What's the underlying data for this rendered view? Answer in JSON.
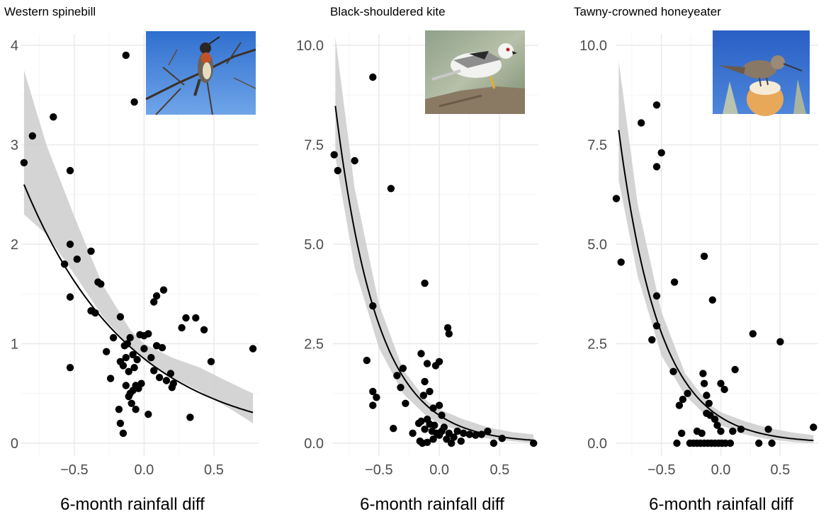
{
  "colors": {
    "background": "#ffffff",
    "grid_major": "#ebebeb",
    "grid_minor": "#f5f5f5",
    "points": "#000000",
    "fit_line": "#000000",
    "ribbon": "#cccccc",
    "tick_text": "#4d4d4d"
  },
  "chart_data": [
    {
      "type": "scatter",
      "title": "Western spinebill",
      "xlabel": "6-month rainfall diff",
      "ylabel": "",
      "xlim": [
        -0.88,
        0.82
      ],
      "ylim": [
        -0.1,
        4.1
      ],
      "x_ticks": [
        -0.5,
        0.0,
        0.5
      ],
      "x_tick_labels": [
        "−0.5",
        "0.0",
        "0.5"
      ],
      "y_ticks": [
        0,
        1,
        2,
        3,
        4
      ],
      "y_tick_labels": [
        "0",
        "1",
        "2",
        "3",
        "4"
      ],
      "grid": true,
      "photo_icon": "western-spinebill-photo",
      "fit": {
        "model": "exponential",
        "a": 0.85,
        "b": -1.3,
        "x_range": [
          -0.86,
          0.78
        ]
      },
      "band": {
        "lower": [
          [
            -0.86,
            2.3
          ],
          [
            -0.7,
            2.1
          ],
          [
            -0.5,
            1.7
          ],
          [
            -0.3,
            1.28
          ],
          [
            -0.1,
            0.96
          ],
          [
            0.0,
            0.84
          ],
          [
            0.2,
            0.66
          ],
          [
            0.4,
            0.52
          ],
          [
            0.6,
            0.36
          ],
          [
            0.78,
            0.2
          ]
        ],
        "upper": [
          [
            -0.86,
            3.75
          ],
          [
            -0.7,
            3.0
          ],
          [
            -0.5,
            2.28
          ],
          [
            -0.3,
            1.6
          ],
          [
            -0.1,
            1.14
          ],
          [
            0.0,
            1.0
          ],
          [
            0.2,
            0.86
          ],
          [
            0.4,
            0.76
          ],
          [
            0.6,
            0.62
          ],
          [
            0.78,
            0.5
          ]
        ]
      },
      "points": [
        [
          -0.86,
          2.82
        ],
        [
          -0.8,
          3.09
        ],
        [
          -0.65,
          3.28
        ],
        [
          -0.13,
          3.9
        ],
        [
          -0.07,
          3.43
        ],
        [
          -0.53,
          2.74
        ],
        [
          -0.53,
          2.0
        ],
        [
          -0.57,
          1.8
        ],
        [
          -0.48,
          1.85
        ],
        [
          -0.38,
          1.93
        ],
        [
          -0.33,
          1.62
        ],
        [
          -0.31,
          1.6
        ],
        [
          -0.53,
          1.47
        ],
        [
          -0.38,
          1.33
        ],
        [
          -0.35,
          1.31
        ],
        [
          -0.53,
          0.76
        ],
        [
          -0.27,
          0.92
        ],
        [
          -0.22,
          1.06
        ],
        [
          -0.24,
          0.65
        ],
        [
          -0.17,
          1.27
        ],
        [
          -0.17,
          0.82
        ],
        [
          -0.14,
          0.98
        ],
        [
          -0.12,
          1.0
        ],
        [
          -0.1,
          1.06
        ],
        [
          -0.13,
          0.86
        ],
        [
          -0.15,
          0.78
        ],
        [
          -0.11,
          0.72
        ],
        [
          -0.07,
          0.76
        ],
        [
          -0.08,
          0.89
        ],
        [
          -0.05,
          0.84
        ],
        [
          -0.13,
          0.58
        ],
        [
          -0.1,
          0.5
        ],
        [
          -0.08,
          0.53
        ],
        [
          -0.06,
          0.58
        ],
        [
          -0.04,
          0.55
        ],
        [
          -0.02,
          0.6
        ],
        [
          -0.09,
          0.4
        ],
        [
          -0.06,
          0.34
        ],
        [
          -0.11,
          0.47
        ],
        [
          -0.18,
          0.34
        ],
        [
          -0.17,
          0.2
        ],
        [
          -0.15,
          0.1
        ],
        [
          -0.03,
          1.09
        ],
        [
          0.0,
          1.08
        ],
        [
          0.03,
          1.1
        ],
        [
          0.07,
          1.42
        ],
        [
          0.09,
          1.48
        ],
        [
          0.14,
          1.54
        ],
        [
          0.0,
          0.95
        ],
        [
          0.05,
          0.86
        ],
        [
          0.09,
          0.98
        ],
        [
          0.13,
          0.96
        ],
        [
          0.07,
          0.73
        ],
        [
          0.11,
          0.66
        ],
        [
          0.16,
          0.63
        ],
        [
          0.19,
          0.7
        ],
        [
          0.21,
          0.6
        ],
        [
          0.2,
          0.56
        ],
        [
          0.03,
          0.29
        ],
        [
          0.27,
          1.16
        ],
        [
          0.3,
          1.26
        ],
        [
          0.37,
          1.26
        ],
        [
          0.43,
          1.14
        ],
        [
          0.48,
          0.82
        ],
        [
          0.33,
          0.26
        ],
        [
          0.78,
          0.95
        ]
      ]
    },
    {
      "type": "scatter",
      "title": "Black-shouldered kite",
      "xlabel": "6-month rainfall diff",
      "ylabel": "",
      "xlim": [
        -0.88,
        0.82
      ],
      "ylim": [
        -0.25,
        10.25
      ],
      "x_ticks": [
        -0.5,
        0.0,
        0.5
      ],
      "x_tick_labels": [
        "−0.5",
        "0.0",
        "0.5"
      ],
      "y_ticks": [
        0,
        2.5,
        5,
        7.5,
        10
      ],
      "y_tick_labels": [
        "0.0",
        "2.5",
        "5.0",
        "7.5",
        "10.0"
      ],
      "grid": true,
      "photo_icon": "black-shouldered-kite-photo",
      "fit": {
        "model": "exponential",
        "a": 0.7,
        "b": -2.9,
        "x_range": [
          -0.86,
          0.78
        ]
      },
      "band": {
        "lower": [
          [
            -0.86,
            7.2
          ],
          [
            -0.7,
            4.4
          ],
          [
            -0.5,
            2.4
          ],
          [
            -0.3,
            1.25
          ],
          [
            -0.1,
            0.66
          ],
          [
            0.0,
            0.5
          ],
          [
            0.2,
            0.26
          ],
          [
            0.4,
            0.12
          ],
          [
            0.6,
            0.05
          ],
          [
            0.78,
            0.0
          ]
        ],
        "upper": [
          [
            -0.86,
            10.2
          ],
          [
            -0.7,
            6.4
          ],
          [
            -0.5,
            3.5
          ],
          [
            -0.3,
            1.85
          ],
          [
            -0.1,
            1.05
          ],
          [
            0.0,
            0.85
          ],
          [
            0.2,
            0.6
          ],
          [
            0.4,
            0.4
          ],
          [
            0.6,
            0.28
          ],
          [
            0.78,
            0.22
          ]
        ]
      },
      "points": [
        [
          -0.87,
          7.25
        ],
        [
          -0.84,
          6.85
        ],
        [
          -0.7,
          7.1
        ],
        [
          -0.55,
          9.2
        ],
        [
          -0.4,
          6.4
        ],
        [
          -0.55,
          3.45
        ],
        [
          -0.6,
          2.08
        ],
        [
          -0.55,
          1.3
        ],
        [
          -0.52,
          1.15
        ],
        [
          -0.55,
          0.95
        ],
        [
          -0.35,
          1.7
        ],
        [
          -0.3,
          1.88
        ],
        [
          -0.32,
          1.4
        ],
        [
          -0.28,
          1.0
        ],
        [
          -0.38,
          0.37
        ],
        [
          -0.12,
          4.02
        ],
        [
          -0.15,
          2.25
        ],
        [
          -0.12,
          1.55
        ],
        [
          -0.1,
          2.0
        ],
        [
          -0.03,
          1.95
        ],
        [
          0.0,
          2.05
        ],
        [
          0.07,
          2.9
        ],
        [
          0.08,
          2.75
        ],
        [
          -0.13,
          1.2
        ],
        [
          -0.08,
          1.3
        ],
        [
          -0.05,
          0.88
        ],
        [
          0.0,
          0.95
        ],
        [
          0.02,
          0.7
        ],
        [
          -0.22,
          0.25
        ],
        [
          -0.17,
          0.5
        ],
        [
          -0.15,
          0.55
        ],
        [
          -0.12,
          0.35
        ],
        [
          -0.1,
          0.6
        ],
        [
          -0.08,
          0.48
        ],
        [
          -0.06,
          0.3
        ],
        [
          -0.04,
          0.45
        ],
        [
          -0.02,
          0.25
        ],
        [
          0.0,
          0.2
        ],
        [
          0.02,
          0.3
        ],
        [
          0.04,
          0.4
        ],
        [
          0.06,
          0.1
        ],
        [
          0.08,
          0.25
        ],
        [
          0.1,
          0.0
        ],
        [
          0.12,
          0.15
        ],
        [
          0.15,
          0.3
        ],
        [
          0.18,
          0.05
        ],
        [
          0.2,
          0.25
        ],
        [
          0.25,
          0.22
        ],
        [
          0.3,
          0.2
        ],
        [
          0.35,
          0.22
        ],
        [
          0.4,
          0.3
        ],
        [
          0.45,
          0.0
        ],
        [
          0.52,
          0.12
        ],
        [
          -0.16,
          0.05
        ],
        [
          -0.14,
          0.0
        ],
        [
          -0.1,
          0.02
        ],
        [
          -0.05,
          0.1
        ],
        [
          0.78,
          0.0
        ]
      ]
    },
    {
      "type": "scatter",
      "title": "Tawny-crowned honeyeater",
      "xlabel": "6-month rainfall diff",
      "ylabel": "",
      "xlim": [
        -0.88,
        0.82
      ],
      "ylim": [
        -0.25,
        10.25
      ],
      "x_ticks": [
        -0.5,
        0.0,
        0.5
      ],
      "x_tick_labels": [
        "−0.5",
        "0.0",
        "0.5"
      ],
      "y_ticks": [
        0,
        2.5,
        5,
        7.5,
        10
      ],
      "y_tick_labels": [
        "0.0",
        "2.5",
        "5.0",
        "7.5",
        "10.0"
      ],
      "grid": true,
      "photo_icon": "tawny-crowned-honeyeater-photo",
      "fit": {
        "model": "exponential",
        "a": 0.65,
        "b": -2.9,
        "x_range": [
          -0.86,
          0.78
        ]
      },
      "band": {
        "lower": [
          [
            -0.86,
            6.6
          ],
          [
            -0.7,
            4.2
          ],
          [
            -0.5,
            2.2
          ],
          [
            -0.3,
            1.2
          ],
          [
            -0.1,
            0.62
          ],
          [
            0.0,
            0.45
          ],
          [
            0.2,
            0.22
          ],
          [
            0.4,
            0.1
          ],
          [
            0.6,
            0.03
          ],
          [
            0.78,
            0.0
          ]
        ],
        "upper": [
          [
            -0.86,
            9.6
          ],
          [
            -0.7,
            6.0
          ],
          [
            -0.5,
            3.3
          ],
          [
            -0.3,
            1.75
          ],
          [
            -0.1,
            0.98
          ],
          [
            0.0,
            0.78
          ],
          [
            0.2,
            0.55
          ],
          [
            0.4,
            0.38
          ],
          [
            0.6,
            0.27
          ],
          [
            0.78,
            0.2
          ]
        ]
      },
      "points": [
        [
          -0.88,
          6.15
        ],
        [
          -0.84,
          4.55
        ],
        [
          -0.67,
          8.05
        ],
        [
          -0.54,
          8.5
        ],
        [
          -0.5,
          7.3
        ],
        [
          -0.54,
          6.95
        ],
        [
          -0.54,
          3.7
        ],
        [
          -0.54,
          2.95
        ],
        [
          -0.58,
          2.6
        ],
        [
          -0.39,
          4.05
        ],
        [
          -0.4,
          1.8
        ],
        [
          -0.35,
          0.95
        ],
        [
          -0.32,
          1.1
        ],
        [
          -0.28,
          1.25
        ],
        [
          -0.33,
          0.25
        ],
        [
          -0.37,
          0.0
        ],
        [
          -0.14,
          4.7
        ],
        [
          -0.07,
          3.6
        ],
        [
          -0.15,
          1.75
        ],
        [
          -0.14,
          1.5
        ],
        [
          -0.12,
          1.2
        ],
        [
          -0.1,
          1.0
        ],
        [
          -0.12,
          0.75
        ],
        [
          -0.09,
          0.7
        ],
        [
          -0.05,
          0.6
        ],
        [
          -0.03,
          0.45
        ],
        [
          0.0,
          0.3
        ],
        [
          0.03,
          1.35
        ],
        [
          0.0,
          1.5
        ],
        [
          0.12,
          1.85
        ],
        [
          0.1,
          0.3
        ],
        [
          0.17,
          0.35
        ],
        [
          -0.2,
          0.3
        ],
        [
          -0.16,
          0.25
        ],
        [
          -0.26,
          0.0
        ],
        [
          -0.23,
          0.0
        ],
        [
          -0.2,
          0.0
        ],
        [
          -0.17,
          0.0
        ],
        [
          -0.14,
          0.0
        ],
        [
          -0.11,
          0.0
        ],
        [
          -0.08,
          0.0
        ],
        [
          -0.05,
          0.0
        ],
        [
          -0.02,
          0.0
        ],
        [
          0.01,
          0.0
        ],
        [
          0.04,
          0.0
        ],
        [
          0.08,
          0.0
        ],
        [
          0.27,
          2.75
        ],
        [
          0.32,
          0.0
        ],
        [
          0.4,
          0.35
        ],
        [
          0.43,
          0.0
        ],
        [
          0.5,
          2.55
        ],
        [
          0.78,
          0.4
        ]
      ]
    }
  ]
}
